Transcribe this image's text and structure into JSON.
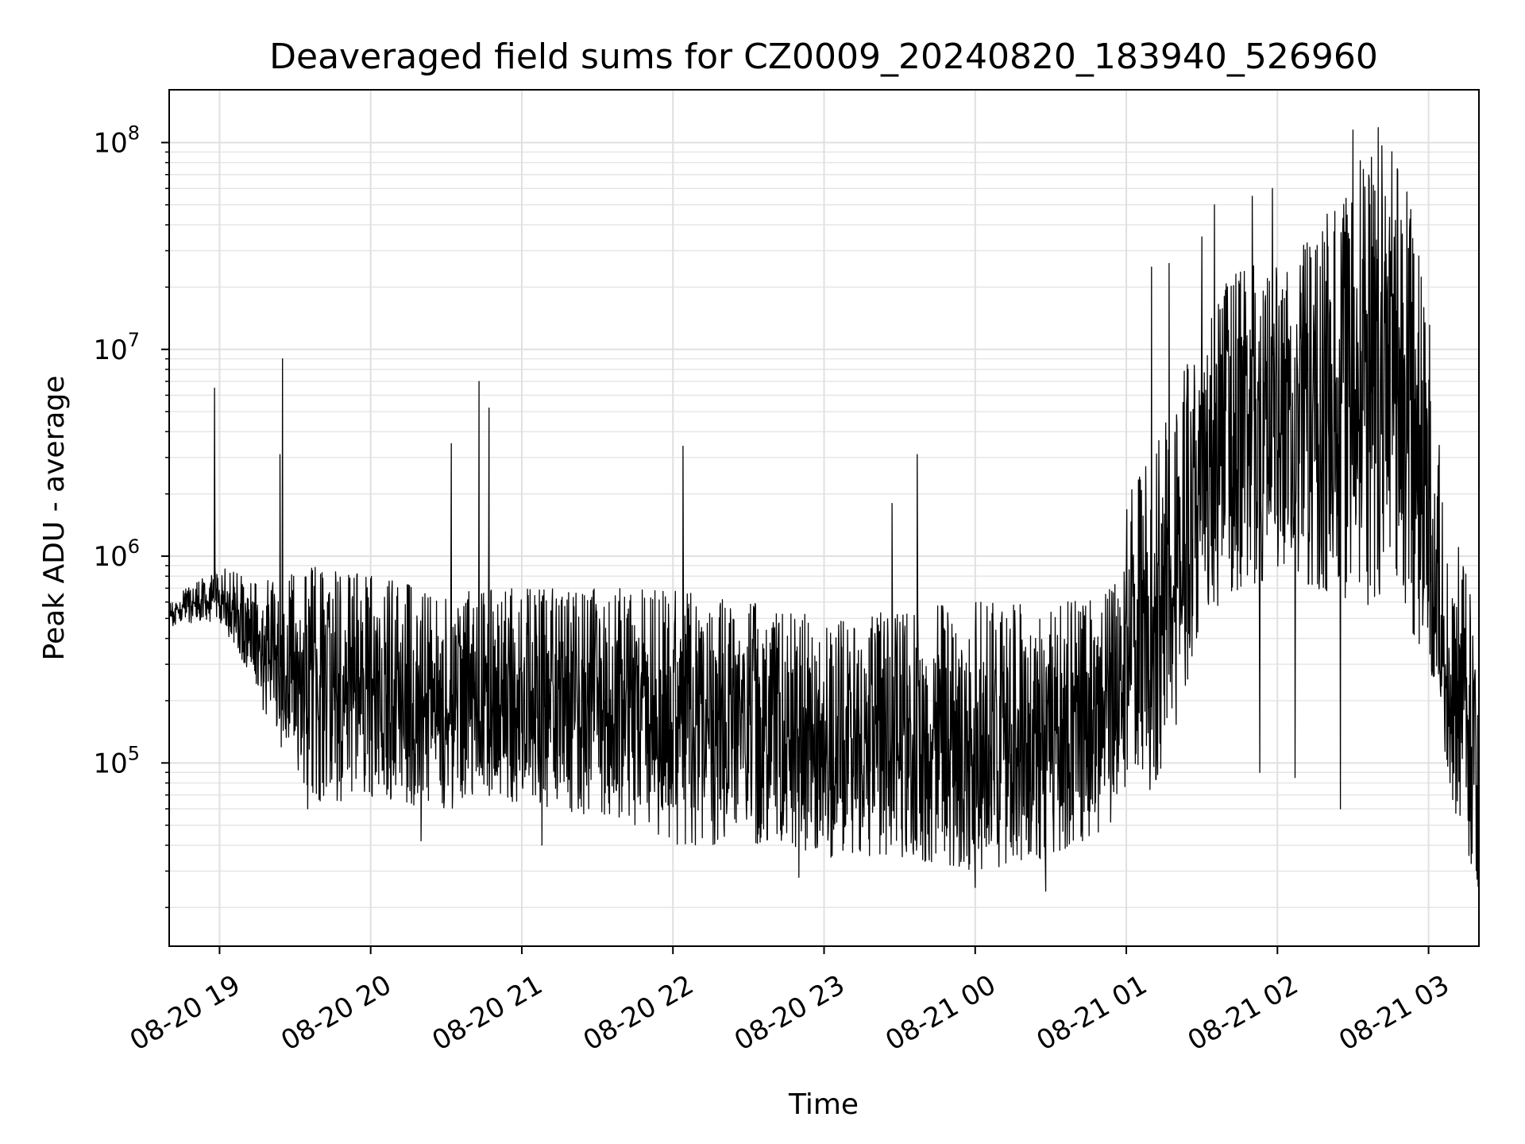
{
  "chart_data": {
    "type": "line",
    "title": "Deaveraged field sums for CZ0009_20240820_183940_526960",
    "xlabel": "Time",
    "ylabel": "Peak ADU - average",
    "yscale": "log",
    "grid": true,
    "x_range": [
      "2024-08-20 18:40",
      "2024-08-21 03:20"
    ],
    "ylim": [
      13000,
      180000000
    ],
    "x_ticks": [
      {
        "t": "2024-08-20 19:00",
        "label": "08-20 19"
      },
      {
        "t": "2024-08-20 20:00",
        "label": "08-20 20"
      },
      {
        "t": "2024-08-20 21:00",
        "label": "08-20 21"
      },
      {
        "t": "2024-08-20 22:00",
        "label": "08-20 22"
      },
      {
        "t": "2024-08-20 23:00",
        "label": "08-20 23"
      },
      {
        "t": "2024-08-21 00:00",
        "label": "08-21 00"
      },
      {
        "t": "2024-08-21 01:00",
        "label": "08-21 01"
      },
      {
        "t": "2024-08-21 02:00",
        "label": "08-21 02"
      },
      {
        "t": "2024-08-21 03:00",
        "label": "08-21 03"
      }
    ],
    "y_ticks": [
      {
        "value": 100000,
        "base": "10",
        "exp": "5"
      },
      {
        "value": 1000000,
        "base": "10",
        "exp": "6"
      },
      {
        "value": 10000000,
        "base": "10",
        "exp": "7"
      },
      {
        "value": 100000000,
        "base": "10",
        "exp": "8"
      }
    ],
    "series": [
      {
        "color": "#000000",
        "envelope": [
          {
            "t": "2024-08-20 18:40",
            "low": 450000,
            "high": 600000
          },
          {
            "t": "2024-08-20 18:50",
            "low": 480000,
            "high": 750000
          },
          {
            "t": "2024-08-20 19:00",
            "low": 480000,
            "high": 900000
          },
          {
            "t": "2024-08-20 19:10",
            "low": 300000,
            "high": 800000
          },
          {
            "t": "2024-08-20 19:20",
            "low": 150000,
            "high": 800000
          },
          {
            "t": "2024-08-20 19:30",
            "low": 90000,
            "high": 900000
          },
          {
            "t": "2024-08-20 19:40",
            "low": 65000,
            "high": 900000
          },
          {
            "t": "2024-08-20 20:00",
            "low": 65000,
            "high": 800000
          },
          {
            "t": "2024-08-20 20:30",
            "low": 60000,
            "high": 700000
          },
          {
            "t": "2024-08-20 21:00",
            "low": 65000,
            "high": 700000
          },
          {
            "t": "2024-08-20 21:30",
            "low": 55000,
            "high": 700000
          },
          {
            "t": "2024-08-20 22:00",
            "low": 40000,
            "high": 700000
          },
          {
            "t": "2024-08-20 22:30",
            "low": 40000,
            "high": 600000
          },
          {
            "t": "2024-08-20 23:00",
            "low": 35000,
            "high": 500000
          },
          {
            "t": "2024-08-20 23:30",
            "low": 35000,
            "high": 550000
          },
          {
            "t": "2024-08-21 00:00",
            "low": 30000,
            "high": 600000
          },
          {
            "t": "2024-08-21 00:30",
            "low": 35000,
            "high": 600000
          },
          {
            "t": "2024-08-21 00:55",
            "low": 50000,
            "high": 700000
          },
          {
            "t": "2024-08-21 01:00",
            "low": 80000,
            "high": 2000000
          },
          {
            "t": "2024-08-21 01:10",
            "low": 70000,
            "high": 3000000
          },
          {
            "t": "2024-08-21 01:20",
            "low": 150000,
            "high": 6000000
          },
          {
            "t": "2024-08-21 01:30",
            "low": 500000,
            "high": 15000000
          },
          {
            "t": "2024-08-21 01:45",
            "low": 700000,
            "high": 25000000
          },
          {
            "t": "2024-08-21 02:00",
            "low": 800000,
            "high": 30000000
          },
          {
            "t": "2024-08-21 02:15",
            "low": 700000,
            "high": 35000000
          },
          {
            "t": "2024-08-21 02:30",
            "low": 600000,
            "high": 80000000
          },
          {
            "t": "2024-08-21 02:40",
            "low": 500000,
            "high": 100000000
          },
          {
            "t": "2024-08-21 02:50",
            "low": 500000,
            "high": 90000000
          },
          {
            "t": "2024-08-21 03:00",
            "low": 300000,
            "high": 15000000
          },
          {
            "t": "2024-08-21 03:05",
            "low": 150000,
            "high": 3000000
          },
          {
            "t": "2024-08-21 03:10",
            "low": 60000,
            "high": 1500000
          },
          {
            "t": "2024-08-21 03:15",
            "low": 40000,
            "high": 800000
          },
          {
            "t": "2024-08-21 03:20",
            "low": 20000,
            "high": 500000
          }
        ],
        "spikes": [
          {
            "t": "2024-08-20 18:58",
            "value": 6500000
          },
          {
            "t": "2024-08-20 19:25",
            "value": 9000000
          },
          {
            "t": "2024-08-20 19:24",
            "value": 3100000
          },
          {
            "t": "2024-08-20 20:32",
            "value": 3500000
          },
          {
            "t": "2024-08-20 20:43",
            "value": 7000000
          },
          {
            "t": "2024-08-20 20:47",
            "value": 5200000
          },
          {
            "t": "2024-08-20 22:04",
            "value": 3400000
          },
          {
            "t": "2024-08-20 23:27",
            "value": 1800000
          },
          {
            "t": "2024-08-20 23:37",
            "value": 3100000
          },
          {
            "t": "2024-08-21 01:10",
            "value": 25000000
          },
          {
            "t": "2024-08-21 01:17",
            "value": 26000000
          },
          {
            "t": "2024-08-21 01:30",
            "value": 35000000
          },
          {
            "t": "2024-08-21 01:35",
            "value": 50000000
          },
          {
            "t": "2024-08-21 01:50",
            "value": 55000000
          },
          {
            "t": "2024-08-21 01:58",
            "value": 60000000
          },
          {
            "t": "2024-08-21 02:30",
            "value": 115000000
          },
          {
            "t": "2024-08-21 02:40",
            "value": 118000000
          }
        ],
        "dips": [
          {
            "t": "2024-08-20 19:35",
            "value": 60000
          },
          {
            "t": "2024-08-20 20:20",
            "value": 42000
          },
          {
            "t": "2024-08-20 21:08",
            "value": 40000
          },
          {
            "t": "2024-08-20 22:50",
            "value": 28000
          },
          {
            "t": "2024-08-21 00:00",
            "value": 25000
          },
          {
            "t": "2024-08-21 00:28",
            "value": 24000
          },
          {
            "t": "2024-08-21 01:53",
            "value": 90000
          },
          {
            "t": "2024-08-21 02:07",
            "value": 85000
          },
          {
            "t": "2024-08-21 02:25",
            "value": 60000
          },
          {
            "t": "2024-08-21 03:20",
            "value": 18000
          }
        ]
      }
    ]
  }
}
